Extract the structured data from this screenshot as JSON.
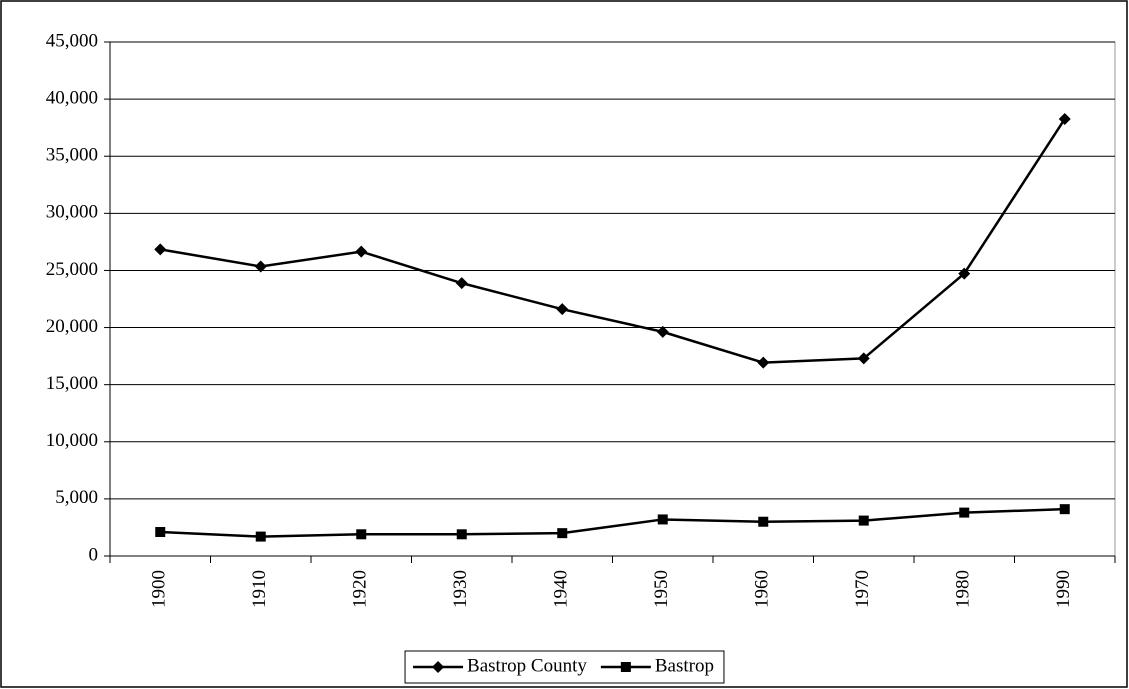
{
  "chart_data": {
    "type": "line",
    "categories": [
      "1900",
      "1910",
      "1920",
      "1930",
      "1940",
      "1950",
      "1960",
      "1970",
      "1980",
      "1990"
    ],
    "series": [
      {
        "name": "Bastrop County",
        "color": "#000000",
        "marker": "diamond",
        "values": [
          26845,
          25344,
          26649,
          23888,
          21610,
          19622,
          16925,
          17297,
          24726,
          38263
        ]
      },
      {
        "name": "Bastrop",
        "color": "#000000",
        "marker": "square",
        "values": [
          2100,
          1700,
          1900,
          1900,
          2000,
          3200,
          3000,
          3100,
          3800,
          4100
        ]
      }
    ],
    "ylim": [
      0,
      45000
    ],
    "yticks": [
      0,
      {
        "value": 5000,
        "label": "5,000"
      },
      {
        "value": 10000,
        "label": "10,000"
      },
      {
        "value": 15000,
        "label": "15,000"
      },
      {
        "value": 20000,
        "label": "20,000"
      },
      {
        "value": 25000,
        "label": "25,000"
      },
      {
        "value": 30000,
        "label": "30,000"
      },
      {
        "value": 35000,
        "label": "35,000"
      },
      {
        "value": 40000,
        "label": "40,000"
      },
      {
        "value": 45000,
        "label": "45,000"
      }
    ],
    "grid": true,
    "legend": "bottom"
  }
}
